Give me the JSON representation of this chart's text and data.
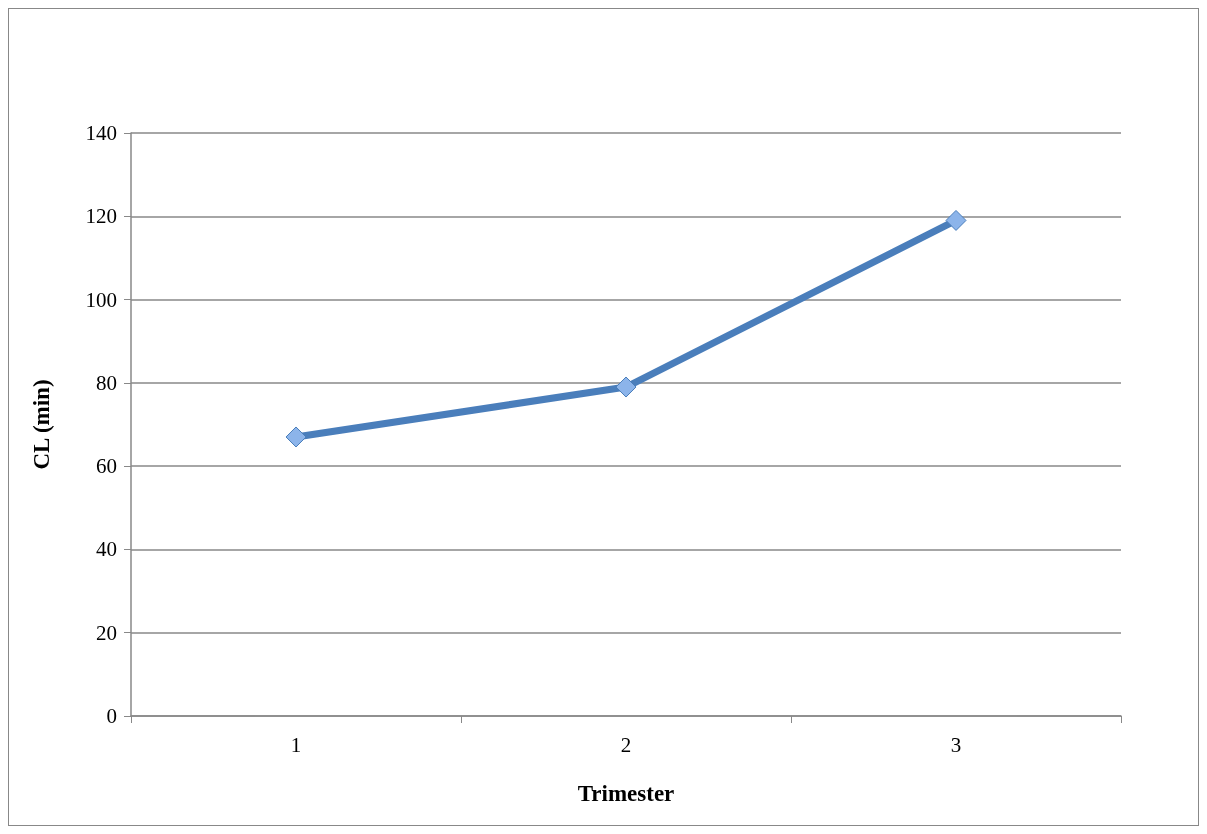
{
  "chart_data": {
    "type": "line",
    "xlabel": "Trimester",
    "ylabel": "CL (min)",
    "categories": [
      "1",
      "2",
      "3"
    ],
    "series": [
      {
        "color": "#4a7ebb",
        "values": [
          67,
          79,
          119
        ]
      }
    ],
    "ylim": [
      0,
      140
    ],
    "yticks": [
      0,
      20,
      40,
      60,
      80,
      100,
      120,
      140
    ],
    "grid": "y",
    "marker": "diamond",
    "line_style": "solid"
  }
}
